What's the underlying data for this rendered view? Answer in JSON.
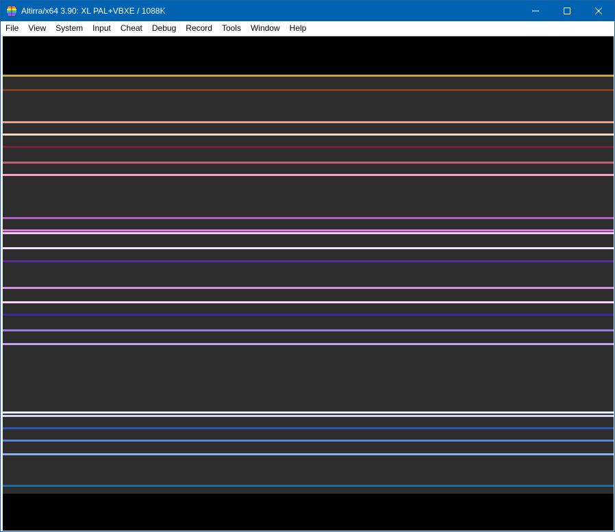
{
  "window": {
    "title": "Altirra/x64 3.90: XL PAL+VBXE / 1088K"
  },
  "caption_buttons": {
    "minimize_icon": "minimize-icon",
    "maximize_icon": "maximize-icon",
    "close_icon": "close-icon"
  },
  "menu": {
    "items": [
      {
        "label": "File"
      },
      {
        "label": "View"
      },
      {
        "label": "System"
      },
      {
        "label": "Input"
      },
      {
        "label": "Cheat"
      },
      {
        "label": "Debug"
      },
      {
        "label": "Record"
      },
      {
        "label": "Tools"
      },
      {
        "label": "Window"
      },
      {
        "label": "Help"
      }
    ]
  },
  "display": {
    "border_color": "#000000",
    "playfield_color": "#2d2d2d",
    "raster_line_colors": [
      "#c9a24a",
      "#8a3a1e",
      "#e7a08a",
      "#f3d6c7",
      "#7a1f3d",
      "#c2607a",
      "#f2a6c8",
      "#b060c0",
      "#e07ae0",
      "#f5c6f5",
      "#f0e4f8",
      "#5a2a9a",
      "#d890e8",
      "#f6d8f6",
      "#3c2a9e",
      "#9a78e0",
      "#c0a6f0",
      "#e8ecf8",
      "#d0d6f0",
      "#2c56b8",
      "#5a86d8",
      "#8aaef0",
      "#1a6aa6"
    ]
  }
}
